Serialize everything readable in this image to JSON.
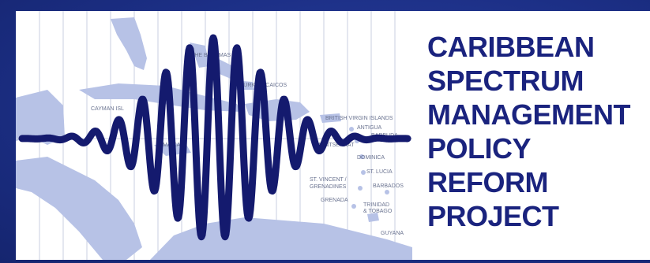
{
  "title_lines": [
    "CARIBBEAN",
    "SPECTRUM",
    "MANAGEMENT",
    "POLICY",
    "REFORM",
    "PROJECT"
  ],
  "map_labels": {
    "cayman": "CAYMAN ISL",
    "the_bahamas": "THE BAHAMAS",
    "turks_caicos": "TURKS & CAICOS",
    "british_virgin": "BRITISH VIRGIN ISLANDS",
    "antigua": "ANTIGUA",
    "jamaica": "JAMAICA",
    "montserrat": "MONTSERRAT",
    "dominica": "DOMINICA",
    "st_lucia": "ST. LUCIA",
    "st_vincent": "ST. VINCENT /",
    "grenadines": "GRENADINES",
    "barbados": "BARBADOS",
    "grenada": "GRENADA",
    "trinidad": "TRINIDAD",
    "tobago": "& TOBAGO",
    "guyana": "GUYANA",
    "barbuda": "BARBUDA"
  },
  "colors": {
    "frame": "#1e3288",
    "wave": "#141a6e",
    "title": "#1a237e",
    "land": "#b7c2e6"
  }
}
